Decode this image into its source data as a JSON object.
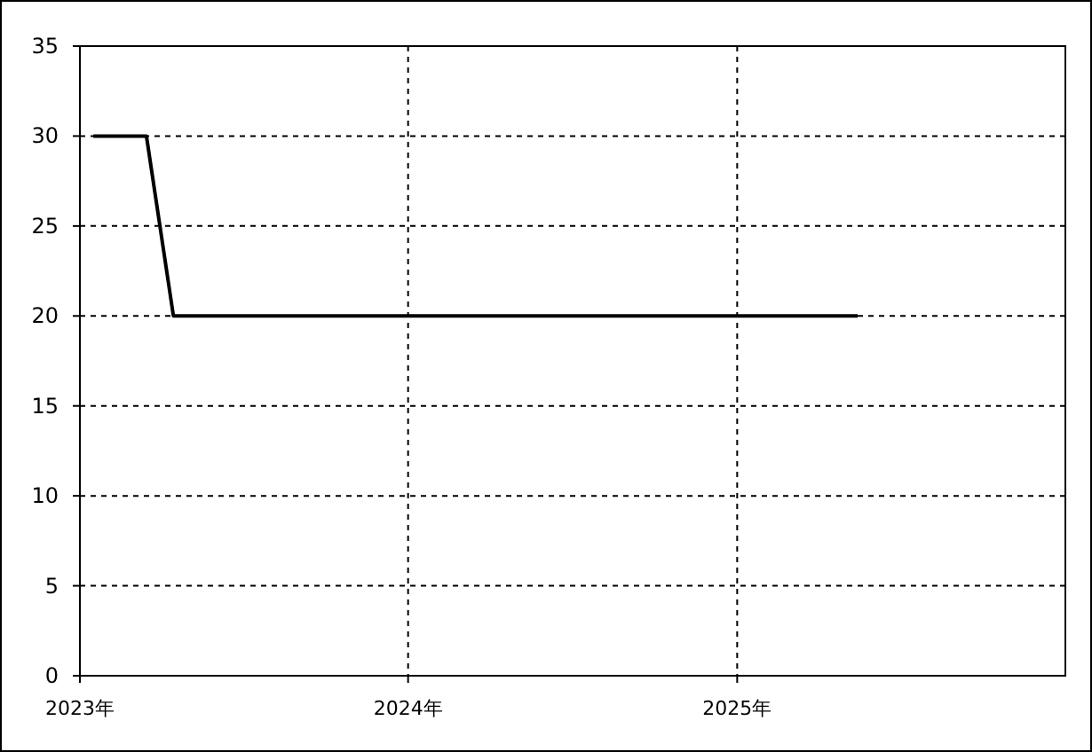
{
  "chart_data": {
    "type": "line",
    "x": [
      "2023-01-16",
      "2023-03-16",
      "2023-04-15",
      "2025-05-15"
    ],
    "series": [
      {
        "color": "#000000",
        "values": [
          30,
          30,
          20,
          20
        ]
      }
    ],
    "xlim": [
      "2023",
      "2026"
    ],
    "xticks": [
      {
        "value": "2023",
        "label": "2023年"
      },
      {
        "value": "2024",
        "label": "2024年"
      },
      {
        "value": "2025",
        "label": "2025年"
      }
    ],
    "ylim": [
      0,
      35
    ],
    "yticks": [
      0,
      5,
      10,
      15,
      20,
      25,
      30,
      35
    ],
    "grid": true,
    "marker": "none",
    "line_style": "solid"
  }
}
